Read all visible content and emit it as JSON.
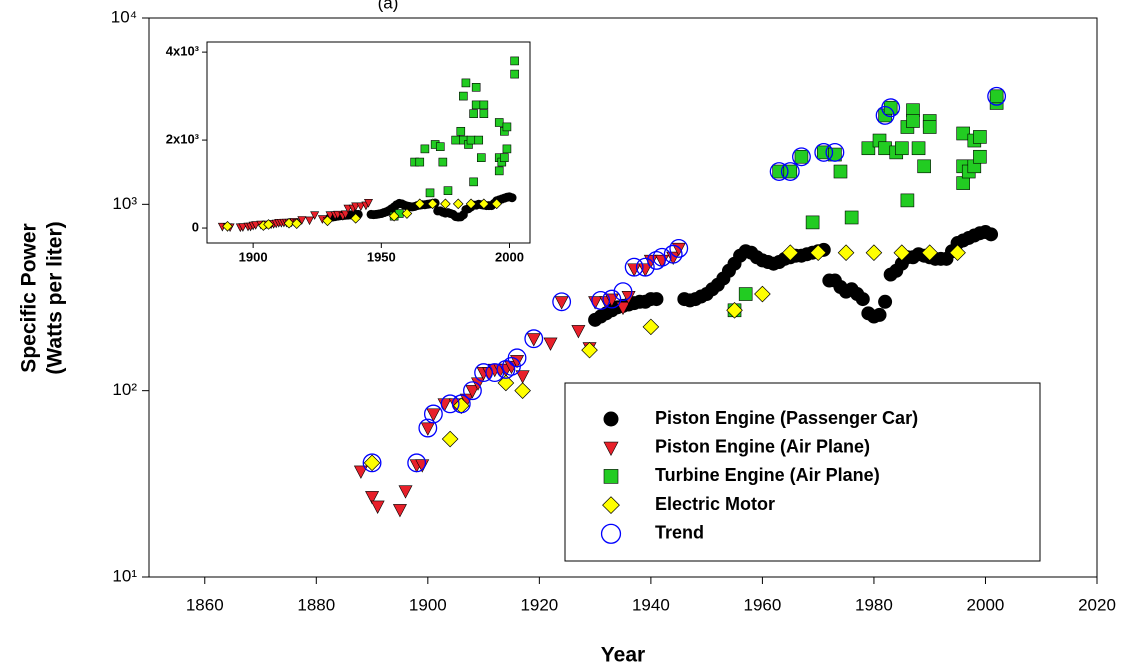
{
  "chart_data": {
    "type": "scatter",
    "title": "(a)",
    "x_label": "Year",
    "y_label": [
      "Specific Power",
      "(Watts per liter)"
    ],
    "log_y": true,
    "xlim": [
      1850,
      2020
    ],
    "xticks": [
      1860,
      1880,
      1900,
      1920,
      1940,
      1960,
      1980,
      2000,
      2020
    ],
    "ylim": [
      10,
      10000
    ],
    "yticks": [
      {
        "value": 10,
        "label": "10¹"
      },
      {
        "value": 100,
        "label": "10²"
      },
      {
        "value": 1000,
        "label": "10³"
      },
      {
        "value": 10000,
        "label": "10⁴"
      }
    ],
    "legend": "lower right",
    "series": [
      {
        "name": "Piston Engine (Passenger Car)",
        "color": "#000000",
        "marker": "circle",
        "x": [
          1930,
          1931,
          1932,
          1933,
          1934,
          1935,
          1936,
          1937,
          1938,
          1939,
          1940,
          1941,
          1946,
          1947,
          1948,
          1949,
          1950,
          1951,
          1952,
          1953,
          1954,
          1955,
          1956,
          1957,
          1958,
          1959,
          1960,
          1961,
          1962,
          1963,
          1964,
          1965,
          1966,
          1967,
          1968,
          1969,
          1970,
          1971,
          1972,
          1973,
          1974,
          1975,
          1976,
          1977,
          1978,
          1979,
          1980,
          1981,
          1982,
          1983,
          1984,
          1985,
          1986,
          1987,
          1988,
          1989,
          1990,
          1991,
          1992,
          1993,
          1994,
          1995,
          1996,
          1997,
          1998,
          1999,
          2000,
          2001
        ],
        "values": [
          240,
          250,
          260,
          270,
          280,
          285,
          290,
          295,
          300,
          300,
          310,
          310,
          310,
          305,
          310,
          320,
          330,
          350,
          370,
          400,
          440,
          480,
          530,
          560,
          550,
          520,
          500,
          490,
          480,
          490,
          510,
          520,
          530,
          530,
          540,
          550,
          560,
          570,
          390,
          390,
          360,
          340,
          350,
          330,
          310,
          260,
          250,
          255,
          300,
          420,
          440,
          480,
          520,
          520,
          540,
          530,
          520,
          510,
          510,
          510,
          560,
          620,
          640,
          660,
          680,
          700,
          710,
          690
        ]
      },
      {
        "name": "Piston Engine (Air Plane)",
        "color": "#e8202a",
        "marker": "triangle-down",
        "x": [
          1888,
          1890,
          1891,
          1895,
          1896,
          1898,
          1899,
          1900,
          1901,
          1903,
          1905,
          1907,
          1908,
          1909,
          1910,
          1911,
          1912,
          1913,
          1914,
          1915,
          1916,
          1917,
          1919,
          1922,
          1924,
          1927,
          1929,
          1930,
          1932,
          1933,
          1935,
          1936,
          1937,
          1939,
          1940,
          1942,
          1944,
          1945
        ],
        "values": [
          37,
          27,
          24,
          23,
          29,
          40,
          40,
          63,
          75,
          85,
          85,
          90,
          100,
          110,
          125,
          125,
          130,
          130,
          130,
          135,
          145,
          120,
          190,
          180,
          300,
          210,
          170,
          300,
          300,
          310,
          280,
          320,
          450,
          450,
          500,
          500,
          520,
          580
        ]
      },
      {
        "name": "Turbine Engine (Air Plane)",
        "color": "#22cc22",
        "marker": "square",
        "x": [
          1955,
          1957,
          1963,
          1965,
          1967,
          1969,
          1971,
          1973,
          1974,
          1976,
          1979,
          1981,
          1982,
          1982,
          1983,
          1984,
          1985,
          1986,
          1986,
          1987,
          1987,
          1988,
          1989,
          1990,
          1990,
          1996,
          1996,
          1996,
          1997,
          1998,
          1998,
          1999,
          1999,
          2002,
          2002
        ],
        "values": [
          270,
          330,
          1500,
          1500,
          1800,
          800,
          1900,
          1850,
          1500,
          850,
          2000,
          2200,
          2000,
          3000,
          3300,
          1900,
          2000,
          2600,
          1050,
          3200,
          2800,
          2000,
          1600,
          2800,
          2600,
          2400,
          1600,
          1300,
          1500,
          1600,
          2200,
          1800,
          2300,
          3500,
          3800
        ]
      },
      {
        "name": "Electric Motor",
        "color": "#ffff00",
        "marker": "diamond",
        "x": [
          1890,
          1904,
          1906,
          1914,
          1917,
          1929,
          1940,
          1955,
          1960,
          1965,
          1970,
          1975,
          1980,
          1985,
          1990,
          1995
        ],
        "values": [
          41,
          55,
          83,
          110,
          100,
          165,
          220,
          270,
          330,
          550,
          550,
          550,
          550,
          550,
          550,
          550
        ]
      },
      {
        "name": "Trend",
        "color": "#0000ff",
        "marker": "circle-open",
        "x": [
          1890,
          1898,
          1900,
          1901,
          1904,
          1906,
          1908,
          1910,
          1912,
          1914,
          1915,
          1916,
          1919,
          1924,
          1931,
          1933,
          1935,
          1937,
          1939,
          1941,
          1942,
          1944,
          1945,
          1963,
          1965,
          1967,
          1971,
          1973,
          1982,
          1983,
          2002
        ],
        "values": [
          41,
          41,
          63,
          75,
          85,
          85,
          100,
          125,
          125,
          130,
          135,
          150,
          190,
          300,
          305,
          310,
          340,
          460,
          460,
          500,
          520,
          540,
          580,
          1500,
          1500,
          1800,
          1900,
          1900,
          3000,
          3300,
          3800
        ]
      }
    ],
    "inset": {
      "xlim": [
        1882,
        2008
      ],
      "xticks": [
        1900,
        1950,
        2000
      ],
      "ylim": [
        -340,
        4230
      ],
      "yticks": [
        0,
        {
          "value": 2000,
          "label": "2x10³"
        },
        {
          "value": 4000,
          "label": "4x10³"
        }
      ],
      "series_shown": [
        0,
        1,
        2,
        3
      ]
    }
  }
}
